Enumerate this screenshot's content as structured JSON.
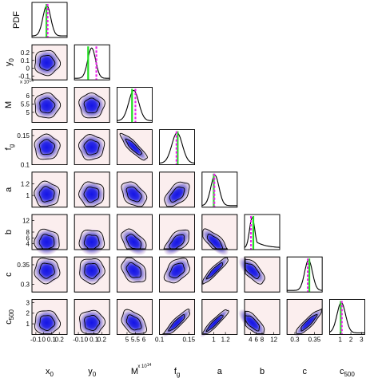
{
  "chart_data": {
    "type": "corner",
    "params": [
      {
        "key": "x0",
        "axis_label": "x",
        "sub": "0",
        "range": [
          -0.15,
          0.3
        ],
        "ticks": [
          -0.1,
          0,
          0.1,
          0.2
        ],
        "tick_labels": [
          "-0.1",
          "0",
          "0.1",
          "0.2"
        ],
        "mean": 0.04,
        "sd": 0.05,
        "marker_green": 0.035,
        "marker_magenta": 0.05
      },
      {
        "key": "y0",
        "axis_label": "y",
        "sub": "0",
        "range": [
          -0.15,
          0.3
        ],
        "ticks": [
          -0.1,
          0,
          0.1,
          0.2
        ],
        "tick_labels": [
          "-0.1",
          "0",
          "0.1",
          "0.2"
        ],
        "mean": 0.07,
        "sd": 0.05,
        "marker_green": 0.025,
        "marker_magenta": 0.13
      },
      {
        "key": "M",
        "axis_label": "M",
        "sub": "",
        "multiplier": "x 10^14",
        "range": [
          4.4,
          6.5
        ],
        "ticks": [
          5,
          5.5,
          6
        ],
        "tick_labels": [
          "5",
          "5.5",
          "6"
        ],
        "mean": 5.4,
        "sd": 0.3,
        "marker_green": 5.3,
        "marker_magenta": 5.5
      },
      {
        "key": "fg",
        "axis_label": "f",
        "sub": "g",
        "range": [
          0.1,
          0.16
        ],
        "ticks": [
          0.1,
          0.15
        ],
        "tick_labels": [
          "0.1",
          "0.15"
        ],
        "mean": 0.13,
        "sd": 0.009,
        "marker_green": 0.131,
        "marker_magenta": 0.129
      },
      {
        "key": "a",
        "axis_label": "a",
        "sub": "",
        "range": [
          0.8,
          1.4
        ],
        "ticks": [
          1,
          1.2
        ],
        "tick_labels": [
          "1",
          "1.2"
        ],
        "mean": 1.02,
        "sd": 0.07,
        "marker_green": 1.0,
        "marker_magenta": 1.01
      },
      {
        "key": "b",
        "axis_label": "b",
        "sub": "",
        "range": [
          2,
          14
        ],
        "ticks": [
          4,
          6,
          8,
          12
        ],
        "tick_labels": [
          "4",
          "6",
          "8",
          "12"
        ],
        "mean": 4.6,
        "sd": 0.9,
        "marker_green": 5.0,
        "marker_magenta": 4.2
      },
      {
        "key": "c",
        "axis_label": "c",
        "sub": "",
        "range": [
          0.28,
          0.37
        ],
        "ticks": [
          0.3,
          0.35
        ],
        "tick_labels": [
          "0.3",
          "0.35"
        ],
        "mean": 0.335,
        "sd": 0.01,
        "marker_green": 0.337,
        "marker_magenta": 0.333
      },
      {
        "key": "c500",
        "axis_label": "c",
        "sub": "500",
        "range": [
          0,
          3.3
        ],
        "ticks": [
          1,
          2,
          3
        ],
        "tick_labels": [
          "1",
          "2",
          "3"
        ],
        "mean": 1.1,
        "sd": 0.4,
        "marker_green": 1.05,
        "marker_magenta": 1.15
      }
    ],
    "pdf_label": "PDF",
    "multiplier_label": "x 10",
    "multiplier_exp": "14",
    "correlations": [
      [
        1,
        0,
        0,
        0,
        0,
        0,
        0,
        0
      ],
      [
        0,
        1,
        0,
        0,
        0,
        0,
        0,
        0
      ],
      [
        0,
        0,
        1,
        -0.8,
        -0.3,
        -0.35,
        -0.25,
        -0.3
      ],
      [
        0,
        0,
        -0.8,
        1,
        0.4,
        0.45,
        0.3,
        0.85
      ],
      [
        0,
        0,
        -0.3,
        0.4,
        1,
        -0.6,
        0.9,
        0.92
      ],
      [
        0,
        0,
        -0.35,
        0.45,
        -0.6,
        1,
        -0.55,
        -0.6
      ],
      [
        0,
        0,
        -0.25,
        0.3,
        0.9,
        -0.55,
        1,
        0.85
      ],
      [
        0,
        0,
        -0.3,
        0.85,
        0.92,
        -0.6,
        0.85,
        1
      ]
    ],
    "colors": {
      "panel_bg": "#fbeeee",
      "density_core": "#1414e6",
      "density_mid": "#6e64d2",
      "density_outer": "#d8c6e4",
      "contour": "#000000",
      "pdf_line": "#000000",
      "marker_true": "#22dd22",
      "marker_mean": "#ee22ee"
    }
  }
}
